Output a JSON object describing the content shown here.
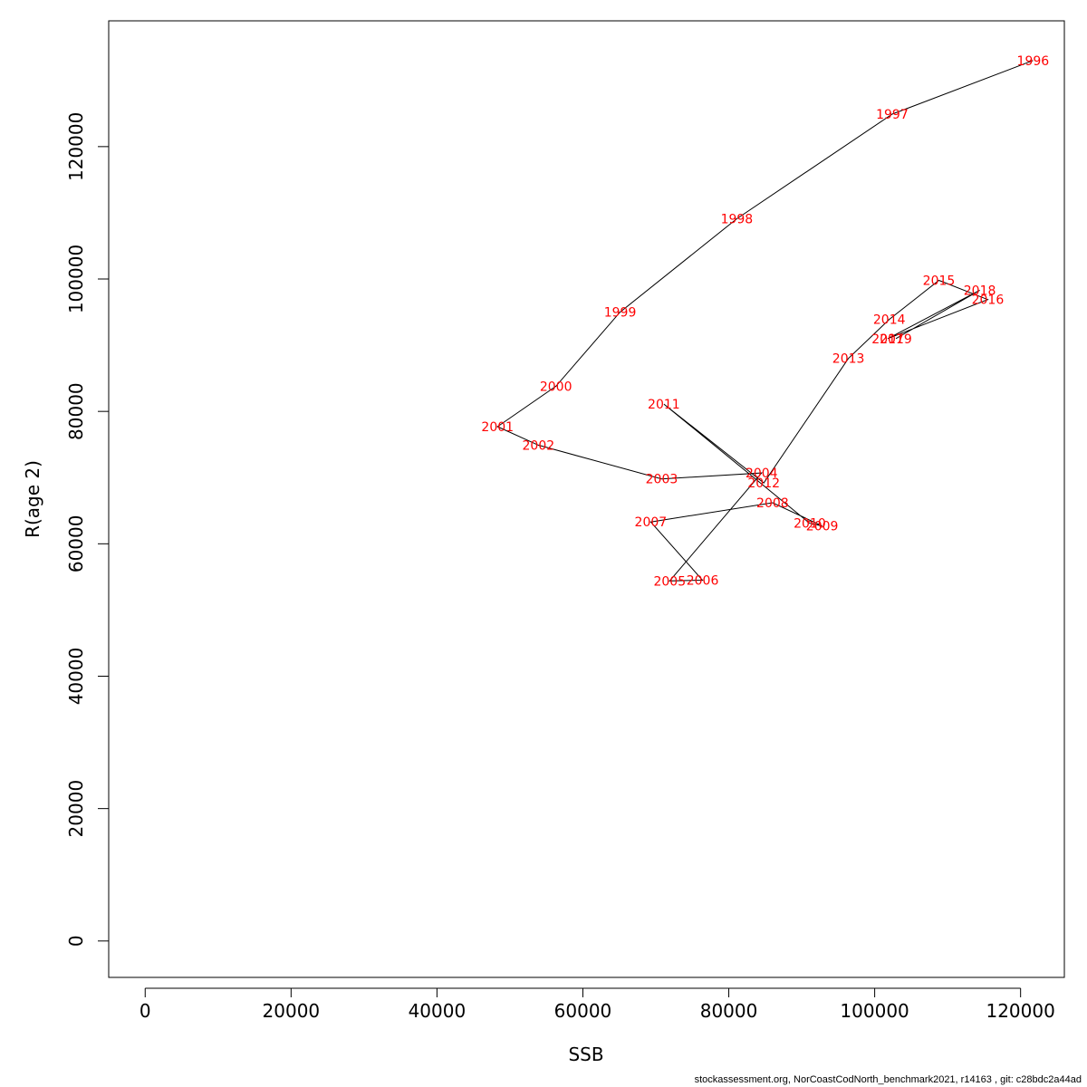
{
  "chart_data": {
    "type": "line",
    "xlabel": "SSB",
    "ylabel": "R(age 2)",
    "xlim": [
      -5000,
      126000
    ],
    "ylim": [
      -5500,
      139000
    ],
    "x_ticks": [
      0,
      20000,
      40000,
      60000,
      80000,
      100000,
      120000
    ],
    "y_ticks": [
      0,
      20000,
      40000,
      60000,
      80000,
      100000,
      120000
    ],
    "grid": false,
    "line_color": "#000000",
    "label_color": "#ff0000",
    "points": [
      {
        "label": "1996",
        "x": 121700,
        "y": 133000
      },
      {
        "label": "1997",
        "x": 102400,
        "y": 124900
      },
      {
        "label": "1998",
        "x": 81100,
        "y": 109100
      },
      {
        "label": "1999",
        "x": 65100,
        "y": 95000
      },
      {
        "label": "2000",
        "x": 56300,
        "y": 83800
      },
      {
        "label": "2001",
        "x": 48300,
        "y": 77700
      },
      {
        "label": "2002",
        "x": 53900,
        "y": 74900
      },
      {
        "label": "2003",
        "x": 70800,
        "y": 69800
      },
      {
        "label": "2004",
        "x": 84500,
        "y": 70700
      },
      {
        "label": "2005",
        "x": 71900,
        "y": 54400
      },
      {
        "label": "2006",
        "x": 76400,
        "y": 54500
      },
      {
        "label": "2007",
        "x": 69300,
        "y": 63300
      },
      {
        "label": "2008",
        "x": 86000,
        "y": 66200
      },
      {
        "label": "2009",
        "x": 92800,
        "y": 62700
      },
      {
        "label": "2010",
        "x": 91100,
        "y": 63100
      },
      {
        "label": "2011",
        "x": 71100,
        "y": 81100
      },
      {
        "label": "2012",
        "x": 84800,
        "y": 69200
      },
      {
        "label": "2013",
        "x": 96400,
        "y": 88000
      },
      {
        "label": "2014",
        "x": 102000,
        "y": 93900
      },
      {
        "label": "2015",
        "x": 108800,
        "y": 99800
      },
      {
        "label": "2016",
        "x": 115500,
        "y": 96900
      },
      {
        "label": "2017",
        "x": 101800,
        "y": 91000
      },
      {
        "label": "2018",
        "x": 114400,
        "y": 98300
      },
      {
        "label": "2019",
        "x": 102900,
        "y": 91000
      }
    ]
  },
  "footer": "stockassessment.org, NorCoastCodNorth_benchmark2021, r14163 , git: c28bdc2a44ad"
}
